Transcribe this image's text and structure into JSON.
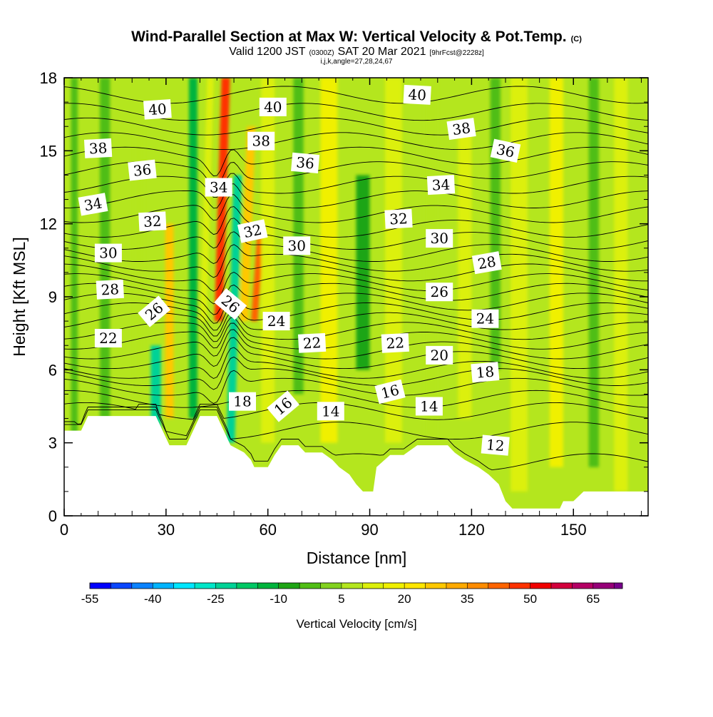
{
  "title": {
    "main": "Wind-Parallel Section at Max W: Vertical Velocity & Pot.Temp.",
    "copyright": "(C)",
    "valid_prefix": "Valid 1200 JST",
    "valid_utc": "(0300Z)",
    "valid_date": "SAT 20 Mar 2021",
    "forecast": "[9hrFcst@2228z]",
    "indices": "i,j,k,angle=27,28,24,67"
  },
  "chart_data": {
    "type": "heatmap",
    "xlabel": "Distance [nm]",
    "ylabel": "Height [Kft MSL]",
    "xlim": [
      0,
      172
    ],
    "ylim": [
      0,
      18
    ],
    "x_ticks": [
      {
        "value": 0,
        "label": "0"
      },
      {
        "value": 30,
        "label": "30"
      },
      {
        "value": 60,
        "label": "60"
      },
      {
        "value": 90,
        "label": "90"
      },
      {
        "value": 120,
        "label": "120"
      },
      {
        "value": 150,
        "label": "150"
      }
    ],
    "y_ticks": [
      {
        "value": 0,
        "label": "0"
      },
      {
        "value": 3,
        "label": "3"
      },
      {
        "value": 6,
        "label": "6"
      },
      {
        "value": 9,
        "label": "9"
      },
      {
        "value": 12,
        "label": "12"
      },
      {
        "value": 15,
        "label": "15"
      },
      {
        "value": 18,
        "label": "18"
      }
    ],
    "colorbar": {
      "title": "Vertical Velocity [cm/s]",
      "min": -55,
      "max": 72,
      "step": 5,
      "tick_values": [
        -55,
        -40,
        -25,
        -10,
        5,
        20,
        35,
        50,
        65
      ],
      "tick_labels": [
        "-55",
        "-40",
        "-25",
        "-10",
        "5",
        "20",
        "35",
        "50",
        "65"
      ],
      "colors": [
        "#0000ff",
        "#0a46ff",
        "#0a82ff",
        "#00b4ff",
        "#00e6ff",
        "#00e6c8",
        "#00d296",
        "#00c864",
        "#00b43c",
        "#1ea514",
        "#50be14",
        "#82d21e",
        "#b4e61e",
        "#dcf00a",
        "#f0f000",
        "#ffe600",
        "#ffc800",
        "#ffaa00",
        "#ff8c00",
        "#ff6400",
        "#ff3200",
        "#f00000",
        "#d2003c",
        "#b40064",
        "#960078",
        "#78008c"
      ]
    },
    "terrain": [
      [
        0,
        3.5
      ],
      [
        5,
        3.5
      ],
      [
        7,
        4.1
      ],
      [
        27,
        4.1
      ],
      [
        29,
        3.5
      ],
      [
        31,
        2.9
      ],
      [
        36,
        2.9
      ],
      [
        38,
        3.5
      ],
      [
        40,
        4.1
      ],
      [
        45,
        4.1
      ],
      [
        47,
        3.5
      ],
      [
        49,
        2.9
      ],
      [
        53,
        2.6
      ],
      [
        55,
        2.3
      ],
      [
        56,
        2.0
      ],
      [
        60,
        2.0
      ],
      [
        62,
        2.5
      ],
      [
        64,
        2.9
      ],
      [
        69,
        2.9
      ],
      [
        71,
        2.6
      ],
      [
        76,
        2.6
      ],
      [
        79,
        2.3
      ],
      [
        81,
        2.0
      ],
      [
        84,
        1.7
      ],
      [
        86,
        1.3
      ],
      [
        88,
        1.0
      ],
      [
        91,
        1.0
      ],
      [
        92,
        2.0
      ],
      [
        96,
        2.5
      ],
      [
        100,
        2.5
      ],
      [
        104,
        2.9
      ],
      [
        113,
        2.9
      ],
      [
        115,
        2.6
      ],
      [
        118,
        2.3
      ],
      [
        122,
        2.0
      ],
      [
        125,
        1.7
      ],
      [
        128,
        1.3
      ],
      [
        130,
        0.6
      ],
      [
        132,
        0.3
      ],
      [
        146,
        0.3
      ],
      [
        147,
        0.6
      ],
      [
        150,
        0.6
      ],
      [
        153,
        1.0
      ],
      [
        172,
        1.0
      ]
    ],
    "w_features": [
      {
        "x": 3,
        "width": 2,
        "top": 18,
        "bottom": 3,
        "w": -5
      },
      {
        "x": 12,
        "width": 3,
        "top": 18,
        "bottom": 4,
        "w": -5
      },
      {
        "x": 22,
        "width": 3,
        "top": 16,
        "bottom": 4,
        "w": 5
      },
      {
        "x": 27,
        "width": 3,
        "top": 7,
        "bottom": 3,
        "w": -25
      },
      {
        "x": 31,
        "width": 2.5,
        "top": 12,
        "bottom": 4,
        "w": 25
      },
      {
        "x": 38,
        "width": 2.5,
        "top": 18,
        "bottom": 4,
        "w": -15
      },
      {
        "x": 41,
        "width": 2,
        "top": 18,
        "bottom": 8,
        "w": 10
      },
      {
        "x": 45.5,
        "width": 2.5,
        "top": 18,
        "bottom": 8,
        "w": 45
      },
      {
        "x": 49,
        "width": 2.5,
        "top": 14,
        "bottom": 3,
        "w": -25
      },
      {
        "x": 53,
        "width": 2.5,
        "top": 16,
        "bottom": 8,
        "w": 25
      },
      {
        "x": 56,
        "width": 2,
        "top": 12,
        "bottom": 8,
        "w": 40
      },
      {
        "x": 60,
        "width": 4,
        "top": 18,
        "bottom": 3,
        "w": 10
      },
      {
        "x": 69,
        "width": 3,
        "top": 18,
        "bottom": 5,
        "w": -5
      },
      {
        "x": 78,
        "width": 5,
        "top": 18,
        "bottom": 3,
        "w": 15
      },
      {
        "x": 88,
        "width": 4,
        "top": 14,
        "bottom": 6,
        "w": -10
      },
      {
        "x": 97,
        "width": 5,
        "top": 18,
        "bottom": 3,
        "w": 10
      },
      {
        "x": 108,
        "width": 4,
        "top": 18,
        "bottom": 3,
        "w": 5
      },
      {
        "x": 118,
        "width": 4,
        "top": 16,
        "bottom": 4,
        "w": 12
      },
      {
        "x": 127,
        "width": 3,
        "top": 18,
        "bottom": 6,
        "w": -5
      },
      {
        "x": 134,
        "width": 5,
        "top": 18,
        "bottom": 1,
        "w": 10
      },
      {
        "x": 145,
        "width": 4,
        "top": 18,
        "bottom": 2,
        "w": 15
      },
      {
        "x": 156,
        "width": 3,
        "top": 18,
        "bottom": 2,
        "w": -5
      },
      {
        "x": 164,
        "width": 4,
        "top": 18,
        "bottom": 1,
        "w": 12
      }
    ],
    "isentropes": {
      "levels": [
        12,
        13,
        14,
        15,
        16,
        17,
        18,
        19,
        20,
        21,
        22,
        23,
        24,
        25,
        26,
        27,
        28,
        29,
        30,
        31,
        32,
        33,
        34,
        35,
        36,
        37,
        38,
        39,
        40,
        41
      ],
      "mean_heights": [
        2.2,
        3.5,
        4.3,
        4.8,
        5.3,
        5.7,
        6.0,
        6.4,
        6.8,
        7.2,
        7.6,
        8.0,
        8.4,
        8.8,
        9.2,
        9.6,
        10.0,
        10.4,
        10.8,
        11.3,
        11.8,
        12.4,
        13.0,
        13.6,
        14.2,
        14.8,
        15.4,
        16.0,
        16.6,
        17.3
      ]
    },
    "contour_labels": [
      {
        "text": "40",
        "x": 27.5,
        "y": 16.7,
        "angle": -4
      },
      {
        "text": "40",
        "x": 61.5,
        "y": 16.8,
        "angle": 0
      },
      {
        "text": "40",
        "x": 104,
        "y": 17.3,
        "angle": 3
      },
      {
        "text": "38",
        "x": 10,
        "y": 15.1,
        "angle": -3
      },
      {
        "text": "38",
        "x": 58,
        "y": 15.4,
        "angle": 0
      },
      {
        "text": "38",
        "x": 117,
        "y": 15.9,
        "angle": -8
      },
      {
        "text": "36",
        "x": 23,
        "y": 14.2,
        "angle": -6
      },
      {
        "text": "36",
        "x": 71,
        "y": 14.5,
        "angle": 5
      },
      {
        "text": "36",
        "x": 130,
        "y": 15.0,
        "angle": 12
      },
      {
        "text": "34",
        "x": 8.5,
        "y": 12.8,
        "angle": -10
      },
      {
        "text": "34",
        "x": 45.5,
        "y": 13.5,
        "angle": 0
      },
      {
        "text": "34",
        "x": 111,
        "y": 13.6,
        "angle": -3
      },
      {
        "text": "32",
        "x": 26,
        "y": 12.1,
        "angle": -3
      },
      {
        "text": "32",
        "x": 55.5,
        "y": 11.7,
        "angle": -12
      },
      {
        "text": "32",
        "x": 98.5,
        "y": 12.2,
        "angle": -3
      },
      {
        "text": "30",
        "x": 13,
        "y": 10.8,
        "angle": 0
      },
      {
        "text": "30",
        "x": 68.5,
        "y": 11.1,
        "angle": 0
      },
      {
        "text": "30",
        "x": 110.5,
        "y": 11.4,
        "angle": 0
      },
      {
        "text": "28",
        "x": 13.5,
        "y": 9.3,
        "angle": -3
      },
      {
        "text": "28",
        "x": 124.5,
        "y": 10.4,
        "angle": -10
      },
      {
        "text": "26",
        "x": 26.5,
        "y": 8.4,
        "angle": -40
      },
      {
        "text": "26",
        "x": 49,
        "y": 8.7,
        "angle": 40
      },
      {
        "text": "26",
        "x": 110.5,
        "y": 9.2,
        "angle": 0
      },
      {
        "text": "24",
        "x": 62.5,
        "y": 8.0,
        "angle": 0
      },
      {
        "text": "24",
        "x": 124,
        "y": 8.1,
        "angle": 0
      },
      {
        "text": "22",
        "x": 13,
        "y": 7.3,
        "angle": 0
      },
      {
        "text": "22",
        "x": 73,
        "y": 7.1,
        "angle": -3
      },
      {
        "text": "22",
        "x": 97.5,
        "y": 7.1,
        "angle": -3
      },
      {
        "text": "20",
        "x": 110.5,
        "y": 6.6,
        "angle": 0
      },
      {
        "text": "18",
        "x": 52.5,
        "y": 4.7,
        "angle": 0
      },
      {
        "text": "18",
        "x": 124,
        "y": 5.9,
        "angle": -5
      },
      {
        "text": "16",
        "x": 64.5,
        "y": 4.5,
        "angle": -40
      },
      {
        "text": "16",
        "x": 96,
        "y": 5.1,
        "angle": -14
      },
      {
        "text": "14",
        "x": 78.5,
        "y": 4.3,
        "angle": 0
      },
      {
        "text": "14",
        "x": 107.5,
        "y": 4.5,
        "angle": 0
      },
      {
        "text": "12",
        "x": 127,
        "y": 2.9,
        "angle": 5
      }
    ]
  }
}
